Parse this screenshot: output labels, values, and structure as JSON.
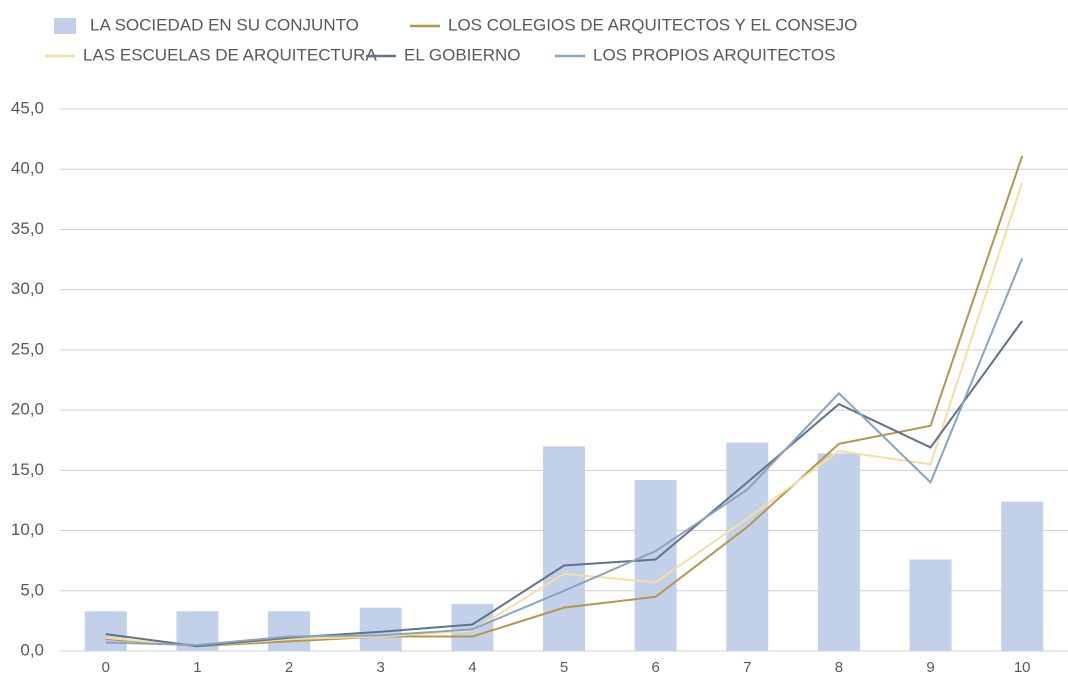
{
  "chart_data": {
    "type": "combo",
    "categories": [
      "0",
      "1",
      "2",
      "3",
      "4",
      "5",
      "6",
      "7",
      "8",
      "9",
      "10"
    ],
    "series": [
      {
        "name": "LA SOCIEDAD EN SU CONJUNTO",
        "type": "bar",
        "color": "#c3d0e9",
        "values": [
          3.3,
          3.3,
          3.3,
          3.6,
          3.9,
          17.0,
          14.2,
          17.3,
          16.4,
          7.6,
          12.4
        ]
      },
      {
        "name": "LOS COLEGIOS DE ARQUITECTOS Y EL CONSEJO",
        "type": "line",
        "color": "#b5964f",
        "values": [
          1.0,
          0.4,
          0.8,
          1.2,
          1.2,
          3.6,
          4.5,
          10.3,
          17.2,
          18.7,
          41.1
        ]
      },
      {
        "name": "LAS ESCUELAS DE ARQUITECTURA",
        "type": "line",
        "color": "#f5dfa0",
        "values": [
          1.1,
          0.4,
          1.0,
          1.2,
          1.7,
          6.4,
          5.7,
          11.0,
          16.6,
          15.5,
          38.9
        ]
      },
      {
        "name": "EL GOBIERNO",
        "type": "line",
        "color": "#5f7389",
        "values": [
          1.4,
          0.4,
          1.1,
          1.6,
          2.2,
          7.1,
          7.6,
          14.0,
          20.5,
          16.9,
          27.4
        ]
      },
      {
        "name": "LOS PROPIOS ARQUITECTOS",
        "type": "line",
        "color": "#8aa3c0",
        "values": [
          0.7,
          0.5,
          1.2,
          1.3,
          1.8,
          5.0,
          8.3,
          13.4,
          21.4,
          14.0,
          32.6
        ]
      }
    ],
    "ylim": [
      0,
      45
    ],
    "yticks": [
      {
        "value": 0,
        "label": "0,0"
      },
      {
        "value": 5,
        "label": "5,0"
      },
      {
        "value": 10,
        "label": "10,0"
      },
      {
        "value": 15,
        "label": "15,0"
      },
      {
        "value": 20,
        "label": "20,0"
      },
      {
        "value": 25,
        "label": "25,0"
      },
      {
        "value": 30,
        "label": "30,0"
      },
      {
        "value": 35,
        "label": "35,0"
      },
      {
        "value": 40,
        "label": "40,0"
      },
      {
        "value": 45,
        "label": "45,0"
      }
    ],
    "grid": true,
    "legend": "top"
  }
}
